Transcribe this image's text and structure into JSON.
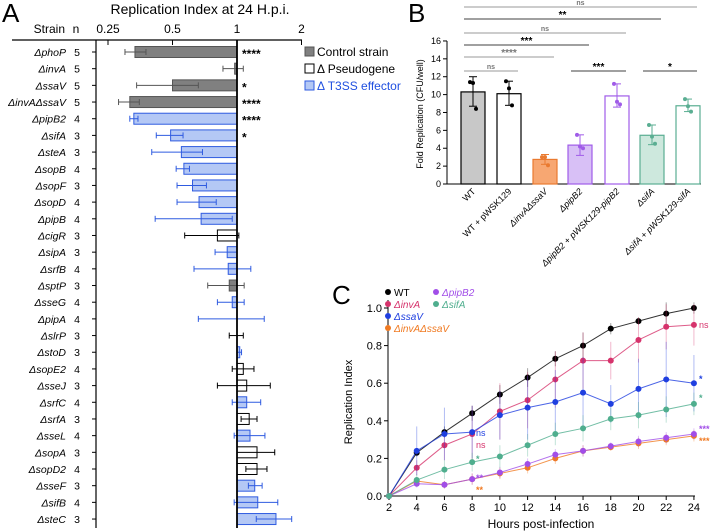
{
  "panel_labels": {
    "a": "A",
    "b": "B",
    "c": "C"
  },
  "chart_data": [
    {
      "type": "bar",
      "orientation": "horizontal",
      "title": "Replication Index at 24 H.p.i.",
      "x_scale": "log2",
      "xlim": [
        0.2,
        2
      ],
      "x_ticks": [
        "0.25",
        "0.5",
        "1",
        "2"
      ],
      "x_tick_values": [
        0.25,
        0.5,
        1,
        2
      ],
      "header_strain": "Strain",
      "header_n": "n",
      "legend": [
        {
          "label": "Control strain",
          "group": "control"
        },
        {
          "label": "Δ Pseudogene",
          "group": "pseudo"
        },
        {
          "label": "Δ T3SS effector",
          "group": "effector"
        }
      ],
      "colors": {
        "control_fill": "#808080",
        "control_stroke": "#555555",
        "pseudo_fill": "#ffffff",
        "pseudo_stroke": "#000000",
        "effector_fill": "#b4c8f5",
        "effector_stroke": "#2f5be0",
        "effector_text": "#1f4fe0"
      },
      "rows": [
        {
          "strain": "ΔphoP",
          "n": "5",
          "group": "control",
          "value": 0.334,
          "lo": 0.3,
          "hi": 0.376,
          "sig": "****"
        },
        {
          "strain": "ΔinvA",
          "n": "5",
          "group": "control",
          "value": 0.975,
          "lo": 0.86,
          "hi": 1.07,
          "sig": ""
        },
        {
          "strain": "ΔssaV",
          "n": "5",
          "group": "control",
          "value": 0.5,
          "lo": 0.34,
          "hi": 0.66,
          "sig": "*"
        },
        {
          "strain": "ΔinvAΔssaV",
          "n": "5",
          "group": "control",
          "value": 0.316,
          "lo": 0.28,
          "hi": 0.35,
          "sig": "****"
        },
        {
          "strain": "ΔpipB2",
          "n": "4",
          "group": "effector",
          "value": 0.33,
          "lo": 0.316,
          "hi": 0.345,
          "sig": "****"
        },
        {
          "strain": "ΔsifA",
          "n": "3",
          "group": "effector",
          "value": 0.49,
          "lo": 0.42,
          "hi": 0.56,
          "sig": "*"
        },
        {
          "strain": "ΔsteA",
          "n": "3",
          "group": "effector",
          "value": 0.55,
          "lo": 0.4,
          "hi": 0.69,
          "sig": ""
        },
        {
          "strain": "ΔsopB",
          "n": "4",
          "group": "effector",
          "value": 0.565,
          "lo": 0.52,
          "hi": 0.6,
          "sig": ""
        },
        {
          "strain": "ΔsopF",
          "n": "3",
          "group": "effector",
          "value": 0.62,
          "lo": 0.525,
          "hi": 0.72,
          "sig": ""
        },
        {
          "strain": "ΔsopD",
          "n": "4",
          "group": "effector",
          "value": 0.665,
          "lo": 0.525,
          "hi": 0.8,
          "sig": ""
        },
        {
          "strain": "ΔpipB",
          "n": "4",
          "group": "effector",
          "value": 0.68,
          "lo": 0.415,
          "hi": 0.95,
          "sig": ""
        },
        {
          "strain": "ΔcigR",
          "n": "3",
          "group": "pseudo",
          "value": 0.81,
          "lo": 0.57,
          "hi": 1.02,
          "sig": ""
        },
        {
          "strain": "ΔsipA",
          "n": "3",
          "group": "effector",
          "value": 0.9,
          "lo": 0.79,
          "hi": 1.0,
          "sig": ""
        },
        {
          "strain": "ΔsrfB",
          "n": "4",
          "group": "effector",
          "value": 0.91,
          "lo": 0.63,
          "hi": 1.16,
          "sig": ""
        },
        {
          "strain": "ΔsptP",
          "n": "3",
          "group": "control",
          "value": 0.92,
          "lo": 0.73,
          "hi": 1.08,
          "sig": ""
        },
        {
          "strain": "ΔsseG",
          "n": "4",
          "group": "effector",
          "value": 0.95,
          "lo": 0.81,
          "hi": 1.08,
          "sig": ""
        },
        {
          "strain": "ΔpipA",
          "n": "4",
          "group": "effector",
          "value": 1.0,
          "lo": 0.66,
          "hi": 1.34,
          "sig": ""
        },
        {
          "strain": "ΔslrP",
          "n": "3",
          "group": "pseudo",
          "value": 1.0,
          "lo": 0.92,
          "hi": 1.07,
          "sig": ""
        },
        {
          "strain": "ΔstoD",
          "n": "3",
          "group": "effector",
          "value": 1.03,
          "lo": 1.0,
          "hi": 1.05,
          "sig": ""
        },
        {
          "strain": "ΔsopE2",
          "n": "4",
          "group": "pseudo",
          "value": 1.07,
          "lo": 0.95,
          "hi": 1.2,
          "sig": ""
        },
        {
          "strain": "ΔsseJ",
          "n": "3",
          "group": "pseudo",
          "value": 1.11,
          "lo": 0.81,
          "hi": 1.43,
          "sig": ""
        },
        {
          "strain": "ΔsrfC",
          "n": "4",
          "group": "effector",
          "value": 1.11,
          "lo": 0.95,
          "hi": 1.29,
          "sig": ""
        },
        {
          "strain": "ΔsrfA",
          "n": "3",
          "group": "pseudo",
          "value": 1.14,
          "lo": 1.045,
          "hi": 1.24,
          "sig": ""
        },
        {
          "strain": "ΔsseL",
          "n": "4",
          "group": "effector",
          "value": 1.15,
          "lo": 0.97,
          "hi": 1.35,
          "sig": ""
        },
        {
          "strain": "ΔsopA",
          "n": "3",
          "group": "pseudo",
          "value": 1.24,
          "lo": 1.0,
          "hi": 1.5,
          "sig": ""
        },
        {
          "strain": "ΔsopD2",
          "n": "4",
          "group": "pseudo",
          "value": 1.24,
          "lo": 1.1,
          "hi": 1.38,
          "sig": ""
        },
        {
          "strain": "ΔsseF",
          "n": "3",
          "group": "effector",
          "value": 1.21,
          "lo": 1.13,
          "hi": 1.31,
          "sig": ""
        },
        {
          "strain": "ΔsifB",
          "n": "4",
          "group": "effector",
          "value": 1.25,
          "lo": 0.97,
          "hi": 1.55,
          "sig": ""
        },
        {
          "strain": "ΔsteC",
          "n": "3",
          "group": "effector",
          "value": 1.52,
          "lo": 1.23,
          "hi": 1.8,
          "sig": ""
        }
      ]
    },
    {
      "type": "bar",
      "ylabel": "Fold Replication (CFU/well)",
      "ylim": [
        0,
        16
      ],
      "y_ticks": [
        "0",
        "2",
        "4",
        "6",
        "8",
        "10",
        "12",
        "14",
        "16"
      ],
      "grid": false,
      "categories": [
        "WT",
        "WT + pWSK129",
        "ΔinvAΔssaV",
        "ΔpipB2",
        "ΔpipB2 + pWSK129-pipB2",
        "ΔsifA",
        "ΔsifA + pWSK129-sifA"
      ],
      "values": [
        10.3,
        10.1,
        2.75,
        4.35,
        9.85,
        5.45,
        8.75
      ],
      "err_lo": [
        8.7,
        8.8,
        2.2,
        3.2,
        8.6,
        4.4,
        8.1
      ],
      "err_hi": [
        12.0,
        11.5,
        3.3,
        5.5,
        11.2,
        6.6,
        9.5
      ],
      "points": [
        [
          11.4,
          11.3,
          8.4
        ],
        [
          11.5,
          10.7,
          8.8
        ],
        [
          3.0,
          3.0,
          2.1
        ],
        [
          5.5,
          4.2,
          4.0
        ],
        [
          11.2,
          9.2,
          8.9
        ],
        [
          6.6,
          5.3,
          4.5
        ],
        [
          9.5,
          8.7,
          8.1
        ]
      ],
      "fills": [
        "#c8c8c8",
        "#ffffff",
        "#f7a772",
        "#d8c0f6",
        "#ffffff",
        "#cde8dd",
        "#ffffff"
      ],
      "strokes": [
        "#000000",
        "#000000",
        "#ea7a30",
        "#a05ce8",
        "#a05ce8",
        "#5aae92",
        "#5aae92"
      ],
      "comparisons": [
        {
          "from": 0,
          "to": 6,
          "label": "ns"
        },
        {
          "from": 0,
          "to": 5,
          "label": "**"
        },
        {
          "from": 0,
          "to": 4,
          "label": "ns"
        },
        {
          "from": 0,
          "to": 3,
          "label": "***"
        },
        {
          "from": 0,
          "to": 2,
          "label": "****"
        },
        {
          "from": 0,
          "to": 1,
          "label": "ns"
        },
        {
          "from": 3,
          "to": 4,
          "label": "***"
        },
        {
          "from": 5,
          "to": 6,
          "label": "*"
        }
      ]
    },
    {
      "type": "line",
      "xlabel": "Hours post-infection",
      "ylabel": "Replication Index",
      "x": [
        2,
        4,
        6,
        8,
        10,
        12,
        14,
        16,
        18,
        20,
        22,
        24
      ],
      "xlim": [
        2,
        24
      ],
      "ylim": [
        0,
        1.0
      ],
      "y_ticks": [
        "0.0",
        "0.2",
        "0.4",
        "0.6",
        "0.8",
        "1.0"
      ],
      "legend_placement": "top-left",
      "series": [
        {
          "name": "WT",
          "color": "#000000",
          "values": [
            0,
            0.23,
            0.34,
            0.44,
            0.54,
            0.63,
            0.73,
            0.8,
            0.89,
            0.93,
            0.97,
            1.0
          ],
          "sd": [
            0,
            0.02,
            0.03,
            0.04,
            0.05,
            0.05,
            0.04,
            0.07,
            0.03,
            0.02,
            0.06,
            0.03
          ],
          "sig8": "",
          "sig24": ""
        },
        {
          "name": "ΔinvA",
          "color": "#d6336c",
          "values": [
            0,
            0.15,
            0.27,
            0.33,
            0.45,
            0.51,
            0.62,
            0.72,
            0.72,
            0.83,
            0.9,
            0.91
          ],
          "sd": [
            0,
            0.04,
            0.08,
            0.15,
            0.15,
            0.15,
            0.15,
            0.15,
            0.1,
            0.12,
            0.12,
            0.11
          ],
          "sig8": "ns",
          "sig24": "ns"
        },
        {
          "name": "ΔssaV",
          "color": "#1f3fe0",
          "values": [
            0,
            0.24,
            0.33,
            0.34,
            0.43,
            0.47,
            0.5,
            0.55,
            0.49,
            0.57,
            0.62,
            0.6
          ],
          "sd": [
            0,
            0.13,
            0.14,
            0.14,
            0.13,
            0.17,
            0.17,
            0.19,
            0.1,
            0.16,
            0.2,
            0.15
          ],
          "sig8": "ns",
          "sig24": "*"
        },
        {
          "name": "ΔinvAΔssaV",
          "color": "#f07a22",
          "values": [
            0,
            0.08,
            0.06,
            0.09,
            0.12,
            0.15,
            0.2,
            0.24,
            0.26,
            0.28,
            0.3,
            0.32
          ],
          "sd": [
            0,
            0.02,
            0.02,
            0.03,
            0.03,
            0.03,
            0.03,
            0.03,
            0.02,
            0.03,
            0.03,
            0.03
          ],
          "sig8": "**",
          "sig24": "***"
        },
        {
          "name": "ΔpipB2",
          "color": "#a14ee8",
          "values": [
            0,
            0.065,
            0.06,
            0.09,
            0.125,
            0.17,
            0.22,
            0.24,
            0.265,
            0.29,
            0.31,
            0.33
          ],
          "sd": [
            0,
            0.02,
            0.02,
            0.03,
            0.03,
            0.03,
            0.03,
            0.03,
            0.02,
            0.03,
            0.03,
            0.03
          ],
          "sig8": "**",
          "sig24": "***"
        },
        {
          "name": "ΔsifA",
          "color": "#4fae8e",
          "values": [
            0,
            0.085,
            0.14,
            0.18,
            0.21,
            0.27,
            0.33,
            0.36,
            0.41,
            0.43,
            0.46,
            0.49
          ],
          "sd": [
            0,
            0.03,
            0.05,
            0.05,
            0.06,
            0.06,
            0.06,
            0.07,
            0.06,
            0.07,
            0.07,
            0.06
          ],
          "sig8": "*",
          "sig24": "*"
        }
      ]
    }
  ]
}
